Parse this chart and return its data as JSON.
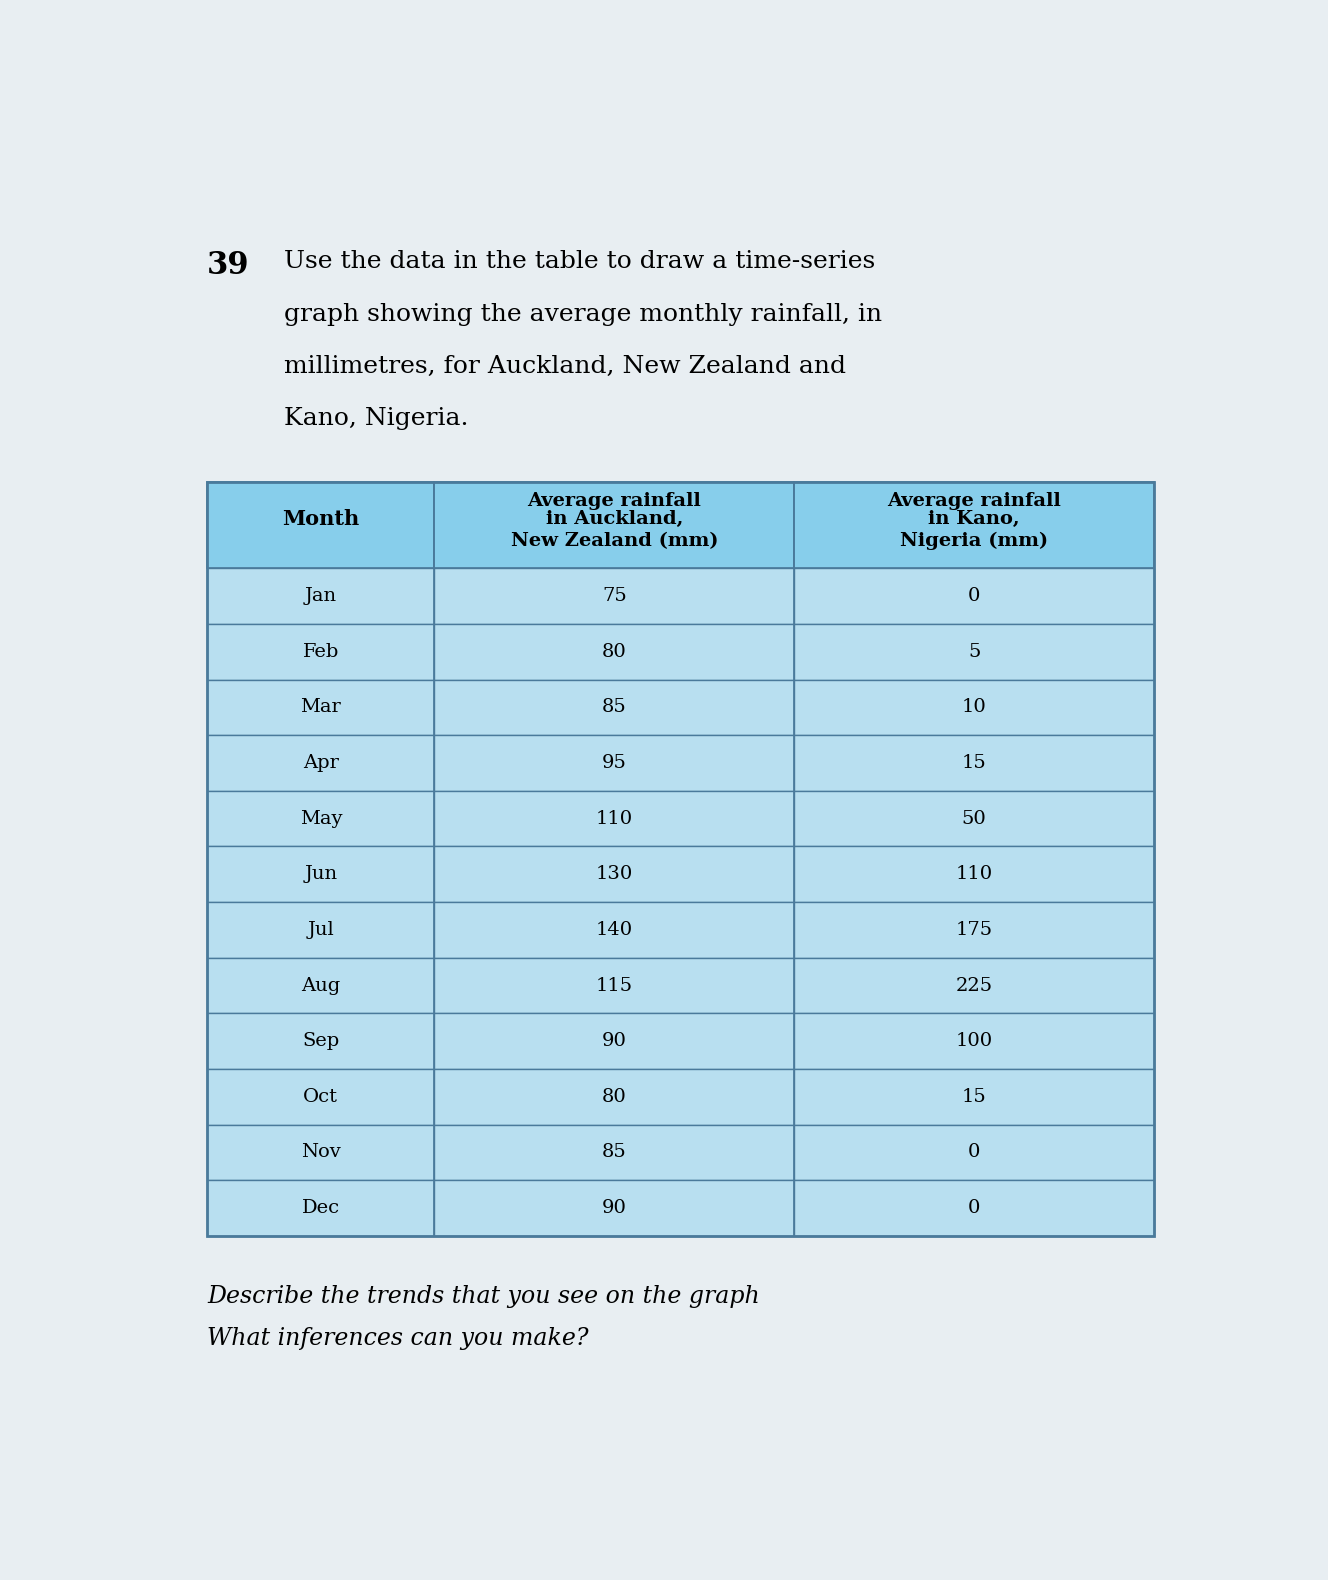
{
  "months": [
    "Jan",
    "Feb",
    "Mar",
    "Apr",
    "May",
    "Jun",
    "Jul",
    "Aug",
    "Sep",
    "Oct",
    "Nov",
    "Dec"
  ],
  "auckland": [
    75,
    80,
    85,
    95,
    110,
    130,
    140,
    115,
    90,
    80,
    85,
    90
  ],
  "kano": [
    0,
    5,
    10,
    15,
    50,
    110,
    175,
    225,
    100,
    15,
    0,
    0
  ],
  "table_header_color": "#87CEEB",
  "table_row_color": "#B8DFF0",
  "table_alt_row_color": "#C8E8F5",
  "bg_color": "#E8EEF2",
  "question_number": "39",
  "question_line1": "Use the data in the table to draw a time-series",
  "question_line2": "graph showing the average monthly rainfall, in",
  "question_line3": "millimetres, for Auckland, New Zealand and",
  "question_line4": "Kano, Nigeria.",
  "col1_header_line1": "Average rainfall",
  "col1_header_line2": "in Auckland,",
  "col1_header_line3": "New Zealand (mm)",
  "col2_header_line1": "Average rainfall",
  "col2_header_line2": "in Kano,",
  "col2_header_line3": "Nigeria (mm)",
  "month_col_header": "Month",
  "bottom_line1": "Describe the trends that you see on the graph",
  "bottom_line2": "What inferences can you make?"
}
